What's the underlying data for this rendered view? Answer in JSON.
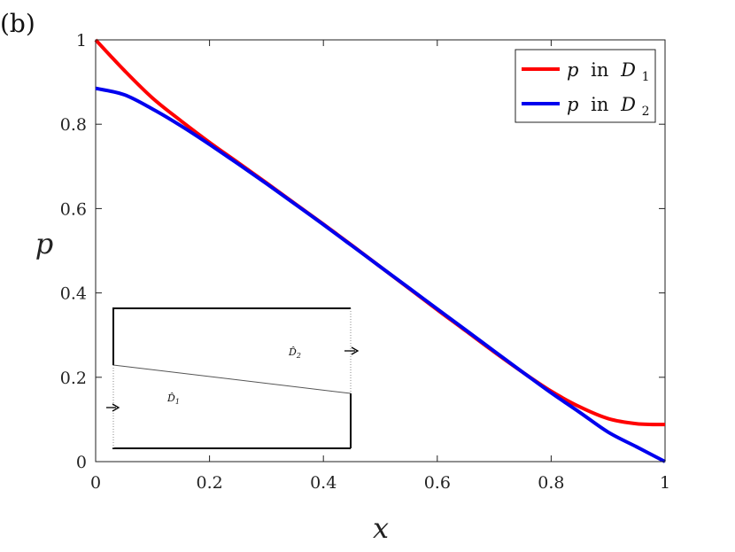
{
  "panel_label": "(b)",
  "chart_data": {
    "type": "line",
    "xlabel": "x",
    "ylabel": "p",
    "xlim": [
      0,
      1
    ],
    "ylim": [
      0,
      1
    ],
    "xticks": [
      0,
      0.2,
      0.4,
      0.6,
      0.8,
      1
    ],
    "xtick_labels": [
      "0",
      "0.2",
      "0.4",
      "0.6",
      "0.8",
      "1"
    ],
    "yticks": [
      0,
      0.2,
      0.4,
      0.6,
      0.8,
      1
    ],
    "ytick_labels": [
      "0",
      "0.2",
      "0.4",
      "0.6",
      "0.8",
      "1"
    ],
    "grid": false,
    "legend_position": "top-right",
    "series": [
      {
        "name": "p in D1",
        "legend_var": "p",
        "legend_word": "in",
        "legend_domain": "D",
        "legend_sub": "1",
        "color": "#ff0000",
        "x": [
          0,
          0.05,
          0.1,
          0.15,
          0.2,
          0.25,
          0.3,
          0.35,
          0.4,
          0.45,
          0.5,
          0.55,
          0.6,
          0.65,
          0.7,
          0.75,
          0.8,
          0.85,
          0.9,
          0.95,
          1
        ],
        "y": [
          1.0,
          0.928,
          0.862,
          0.808,
          0.757,
          0.709,
          0.661,
          0.612,
          0.563,
          0.513,
          0.462,
          0.411,
          0.36,
          0.31,
          0.26,
          0.212,
          0.167,
          0.13,
          0.102,
          0.09,
          0.088
        ]
      },
      {
        "name": "p in D2",
        "legend_var": "p",
        "legend_word": "in",
        "legend_domain": "D",
        "legend_sub": "2",
        "color": "#0000ee",
        "x": [
          0,
          0.05,
          0.1,
          0.15,
          0.2,
          0.25,
          0.3,
          0.35,
          0.4,
          0.45,
          0.5,
          0.55,
          0.6,
          0.65,
          0.7,
          0.75,
          0.8,
          0.85,
          0.9,
          0.95,
          1
        ],
        "y": [
          0.885,
          0.87,
          0.836,
          0.796,
          0.752,
          0.706,
          0.659,
          0.611,
          0.562,
          0.512,
          0.462,
          0.412,
          0.362,
          0.312,
          0.262,
          0.212,
          0.163,
          0.117,
          0.07,
          0.035,
          0.0
        ]
      }
    ],
    "inset": {
      "label_upper": "D̂2",
      "label_upper_base": "D̂",
      "label_upper_sub": "2",
      "label_lower_base": "D̂",
      "label_lower_sub": "1"
    }
  }
}
